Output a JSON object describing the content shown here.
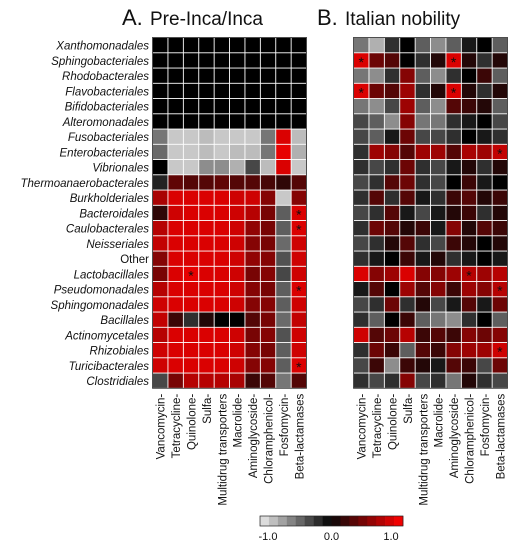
{
  "chart_data": {
    "type": "heatmap",
    "panels": [
      {
        "key": "A",
        "letter": "A.",
        "title": "Pre-Inca/Inca"
      },
      {
        "key": "B",
        "letter": "B.",
        "title": "Italian nobility"
      }
    ],
    "rows": [
      "Xanthomonadales",
      "Sphingobacteriales",
      "Rhodobacterales",
      "Flavobacteriales",
      "Bifidobacteriales",
      "Alteromonadales",
      "Fusobacteriales",
      "Enterobacteriales",
      "Vibrionales",
      "Thermoanaerobacterales",
      "Burkholderiales",
      "Bacteroidales",
      "Caulobacterales",
      "Neisseriales",
      "Other",
      "Lactobacillales",
      "Pseudomonadales",
      "Sphingomonadales",
      "Bacillales",
      "Actinomycetales",
      "Rhizobiales",
      "Turicibacterales",
      "Clostridiales"
    ],
    "columns": [
      "Vancomycin-",
      "Tetracycline-",
      "Quinolone-",
      "Sulfa-",
      "Multidrug transporters",
      "Macrolide-",
      "Aminoglycoside-",
      "Chloramphenicol-",
      "Fosfomycin-",
      "Beta-lactamases"
    ],
    "value_range": [
      -1.0,
      1.0
    ],
    "colorbar": {
      "ticks": [
        -1.0,
        0.0,
        1.0
      ],
      "labels": [
        "-1.0",
        "0.0",
        "1.0"
      ]
    },
    "matrices": {
      "A": [
        [
          0,
          0,
          0,
          0,
          0,
          0,
          0,
          0,
          0,
          0
        ],
        [
          0,
          0,
          0,
          0,
          0,
          0,
          0,
          0,
          0,
          0
        ],
        [
          0,
          0,
          0,
          0,
          0,
          0,
          0,
          0,
          0,
          0
        ],
        [
          0,
          0,
          0,
          0,
          0,
          0,
          0,
          0,
          0,
          0
        ],
        [
          0,
          0,
          0,
          0,
          0,
          0,
          0,
          0,
          0,
          0
        ],
        [
          0,
          0,
          0,
          0,
          0,
          0,
          0,
          0,
          0,
          0
        ],
        [
          -0.5,
          -0.85,
          -0.85,
          -0.8,
          -0.85,
          -0.85,
          -0.85,
          -0.5,
          0.85,
          -0.8
        ],
        [
          -0.45,
          -0.85,
          -0.85,
          -0.8,
          -0.85,
          -0.8,
          -0.8,
          -0.5,
          0.9,
          -0.75
        ],
        [
          0,
          -0.85,
          -0.85,
          -0.6,
          -0.6,
          -0.75,
          -0.3,
          -0.8,
          0.85,
          -0.85
        ],
        [
          -0.15,
          0.35,
          0.3,
          0.3,
          0.35,
          0.3,
          0.3,
          0.25,
          0.15,
          0.3
        ],
        [
          0.65,
          0.85,
          0.85,
          0.85,
          0.85,
          0.8,
          0.8,
          0.5,
          -0.85,
          0.5
        ],
        [
          0.15,
          0.8,
          0.85,
          0.85,
          0.85,
          0.8,
          0.7,
          0.45,
          -0.4,
          0.85
        ],
        [
          0.7,
          0.85,
          0.85,
          0.85,
          0.85,
          0.8,
          0.55,
          0.45,
          -0.4,
          0.85
        ],
        [
          0.75,
          0.85,
          0.85,
          0.85,
          0.85,
          0.8,
          0.5,
          0.45,
          -0.45,
          0.8
        ],
        [
          0.5,
          0.85,
          0.85,
          0.85,
          0.85,
          0.8,
          0.55,
          0.5,
          -0.35,
          0.8
        ],
        [
          0.45,
          0.85,
          0.9,
          0.85,
          0.85,
          0.8,
          0.45,
          0.5,
          -0.3,
          0.8
        ],
        [
          0.7,
          0.85,
          0.85,
          0.85,
          0.85,
          0.8,
          0.5,
          0.45,
          -0.4,
          0.85
        ],
        [
          0.8,
          0.85,
          0.85,
          0.85,
          0.85,
          0.8,
          0.5,
          0.5,
          -0.4,
          0.8
        ],
        [
          0.75,
          0.2,
          -0.2,
          0.1,
          0,
          0,
          0.3,
          0.45,
          -0.45,
          0.75
        ],
        [
          0.7,
          0.85,
          0.85,
          0.85,
          0.85,
          0.8,
          0.45,
          0.5,
          -0.35,
          0.8
        ],
        [
          0.8,
          0.85,
          0.85,
          0.85,
          0.85,
          0.8,
          0.5,
          0.45,
          -0.4,
          0.8
        ],
        [
          0.8,
          0.85,
          0.85,
          0.85,
          0.85,
          0.8,
          0.5,
          0.5,
          -0.4,
          0.85
        ],
        [
          -0.3,
          0.45,
          0.7,
          0.7,
          0.7,
          0.65,
          0.2,
          0.3,
          -0.5,
          0.3
        ]
      ],
      "B": [
        [
          -0.5,
          -0.75,
          -0.2,
          0,
          -0.4,
          -0.6,
          -0.4,
          -0.1,
          0,
          -0.4
        ],
        [
          0.85,
          0.4,
          0.3,
          0,
          -0.2,
          0.1,
          0.85,
          0.1,
          -0.2,
          0.1
        ],
        [
          -0.5,
          -0.6,
          -0.2,
          0.5,
          -0.4,
          -0.6,
          -0.2,
          0,
          0.2,
          -0.4
        ],
        [
          0.85,
          0.4,
          0.3,
          0.6,
          -0.2,
          0.1,
          0.85,
          0.1,
          -0.2,
          0.1
        ],
        [
          -0.5,
          -0.6,
          -0.3,
          0.6,
          -0.4,
          -0.6,
          0.3,
          0.2,
          0.1,
          -0.4
        ],
        [
          -0.3,
          -0.4,
          -0.6,
          0.5,
          -0.5,
          -0.5,
          -0.2,
          -0.1,
          0,
          -0.3
        ],
        [
          -0.3,
          -0.4,
          -0.1,
          0.4,
          -0.3,
          -0.3,
          -0.2,
          0,
          -0.1,
          -0.2
        ],
        [
          -0.2,
          0.6,
          0.5,
          0.3,
          0.6,
          0.6,
          0.3,
          0.65,
          0.6,
          0.75
        ],
        [
          -0.2,
          -0.3,
          -0.2,
          0.4,
          -0.2,
          -0.3,
          -0.1,
          0.1,
          -0.2,
          0.1
        ],
        [
          -0.3,
          -0.2,
          0.3,
          0.4,
          -0.2,
          -0.3,
          0,
          0.2,
          -0.1,
          0
        ],
        [
          -0.2,
          0.3,
          -0.2,
          0.3,
          -0.1,
          -0.2,
          0.2,
          0.3,
          0.1,
          0.2
        ],
        [
          -0.3,
          -0.2,
          0.3,
          -0.1,
          -0.3,
          -0.1,
          0.1,
          0.2,
          -0.2,
          0.1
        ],
        [
          -0.2,
          0.4,
          0.3,
          0.1,
          0.2,
          -0.1,
          0.5,
          0.1,
          0.3,
          0.2
        ],
        [
          -0.3,
          -0.2,
          0.1,
          0.3,
          -0.2,
          -0.3,
          0.2,
          0.1,
          0,
          0.1
        ],
        [
          -0.2,
          -0.1,
          0,
          0.2,
          -0.1,
          0.1,
          -0.2,
          -0.1,
          0,
          -0.1
        ],
        [
          0.85,
          0.5,
          0.6,
          0.85,
          0.5,
          0.5,
          0.6,
          0.7,
          0.6,
          0.7
        ],
        [
          -0.1,
          0.3,
          0,
          0.6,
          0.3,
          0.5,
          0.2,
          0.6,
          0.5,
          0.7
        ],
        [
          -0.3,
          -0.2,
          0.4,
          -0.2,
          0.1,
          -0.3,
          -0.1,
          0.3,
          -0.1,
          0.4
        ],
        [
          -0.2,
          -0.4,
          0,
          0.2,
          -0.4,
          -0.5,
          -0.6,
          -0.2,
          0,
          -0.4
        ],
        [
          0.8,
          0.3,
          0.4,
          0.7,
          0.2,
          0.3,
          0.2,
          0.5,
          0.4,
          0.5
        ],
        [
          -0.2,
          0.4,
          0.2,
          -0.4,
          0.3,
          0.2,
          0.5,
          0.6,
          0.6,
          0.8
        ],
        [
          -0.3,
          0.2,
          -0.6,
          0.2,
          0.1,
          -0.1,
          0.3,
          0.2,
          -0.3,
          0.4
        ],
        [
          -0.2,
          -0.3,
          -0.2,
          0.5,
          -0.3,
          -0.2,
          -0.5,
          0.1,
          -0.2,
          -0.3
        ]
      ]
    },
    "significance_markers": {
      "symbol": "*",
      "A": [
        [
          11,
          9
        ],
        [
          12,
          9
        ],
        [
          15,
          2
        ],
        [
          16,
          9
        ],
        [
          21,
          9
        ]
      ],
      "B": [
        [
          1,
          0
        ],
        [
          1,
          6
        ],
        [
          3,
          0
        ],
        [
          3,
          6
        ],
        [
          7,
          9
        ],
        [
          15,
          7
        ],
        [
          16,
          9
        ],
        [
          20,
          9
        ]
      ]
    }
  }
}
